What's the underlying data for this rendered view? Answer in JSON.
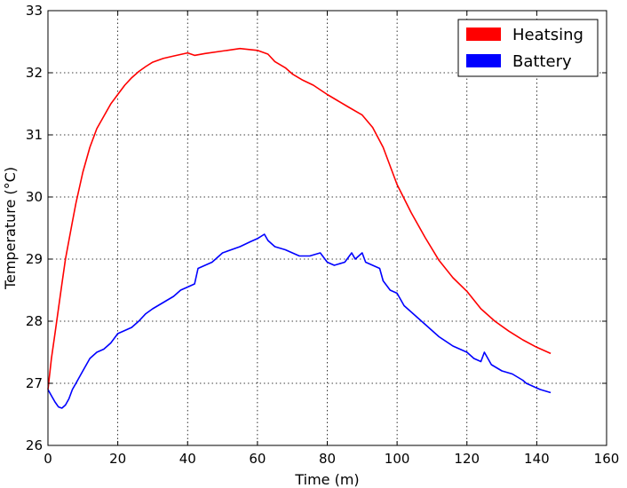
{
  "chart_data": {
    "type": "line",
    "xlabel": "Time (m)",
    "ylabel": "Temperature (°C)",
    "xlim": [
      0,
      160
    ],
    "ylim": [
      26,
      33
    ],
    "xticks": [
      0,
      20,
      40,
      60,
      80,
      100,
      120,
      140,
      160
    ],
    "yticks": [
      26,
      27,
      28,
      29,
      30,
      31,
      32,
      33
    ],
    "grid": true,
    "legend_position": "top-right",
    "series": [
      {
        "name": "Heatsing",
        "color": "#ff0000",
        "x": [
          0,
          1,
          2,
          3,
          4,
          5,
          6,
          7,
          8,
          10,
          12,
          14,
          16,
          18,
          20,
          22,
          24,
          26,
          28,
          30,
          33,
          36,
          40,
          42,
          45,
          50,
          55,
          60,
          63,
          65,
          68,
          70,
          73,
          76,
          80,
          83,
          86,
          90,
          93,
          96,
          100,
          104,
          108,
          112,
          116,
          120,
          124,
          128,
          132,
          136,
          140,
          144
        ],
        "y": [
          26.9,
          27.4,
          27.8,
          28.2,
          28.6,
          29.0,
          29.3,
          29.6,
          29.9,
          30.4,
          30.8,
          31.1,
          31.3,
          31.5,
          31.65,
          31.8,
          31.92,
          32.02,
          32.1,
          32.17,
          32.23,
          32.27,
          32.32,
          32.28,
          32.31,
          32.35,
          32.39,
          32.36,
          32.3,
          32.18,
          32.08,
          31.98,
          31.88,
          31.8,
          31.65,
          31.55,
          31.45,
          31.32,
          31.12,
          30.8,
          30.2,
          29.75,
          29.35,
          28.98,
          28.7,
          28.48,
          28.2,
          28.0,
          27.84,
          27.7,
          27.58,
          27.48
        ]
      },
      {
        "name": "Battery",
        "color": "#0000ff",
        "x": [
          0,
          1,
          2,
          3,
          4,
          5,
          6,
          7,
          8,
          10,
          12,
          14,
          16,
          18,
          20,
          22,
          24,
          26,
          28,
          30,
          33,
          36,
          38,
          40,
          42,
          43,
          45,
          47,
          50,
          55,
          58,
          60,
          62,
          63,
          65,
          68,
          70,
          72,
          75,
          78,
          80,
          82,
          85,
          87,
          88,
          90,
          91,
          93,
          95,
          96,
          98,
          100,
          102,
          105,
          108,
          112,
          116,
          120,
          122,
          124,
          125,
          127,
          130,
          133,
          136,
          137,
          139,
          141,
          144
        ],
        "y": [
          26.9,
          26.8,
          26.7,
          26.62,
          26.6,
          26.65,
          26.75,
          26.9,
          27.0,
          27.2,
          27.4,
          27.5,
          27.55,
          27.65,
          27.8,
          27.85,
          27.9,
          28.0,
          28.12,
          28.2,
          28.3,
          28.4,
          28.5,
          28.55,
          28.6,
          28.85,
          28.9,
          28.95,
          29.1,
          29.2,
          29.28,
          29.33,
          29.4,
          29.3,
          29.2,
          29.15,
          29.1,
          29.05,
          29.05,
          29.1,
          28.95,
          28.9,
          28.95,
          29.1,
          29.0,
          29.1,
          28.95,
          28.9,
          28.85,
          28.65,
          28.5,
          28.45,
          28.25,
          28.1,
          27.95,
          27.75,
          27.6,
          27.5,
          27.4,
          27.35,
          27.5,
          27.3,
          27.2,
          27.15,
          27.05,
          27.0,
          26.95,
          26.9,
          26.85
        ]
      }
    ]
  }
}
